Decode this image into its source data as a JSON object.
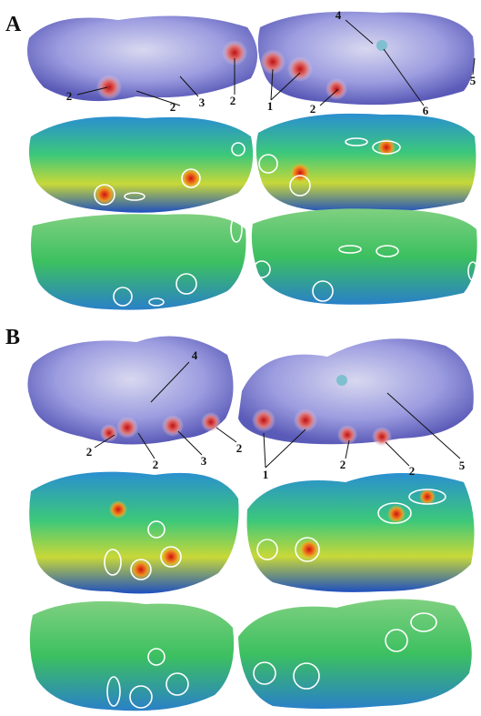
{
  "panels": [
    {
      "label": "A",
      "callouts": [
        "2",
        "2",
        "3",
        "2",
        "4",
        "1",
        "2",
        "6",
        "5"
      ]
    },
    {
      "label": "B",
      "callouts": [
        "4",
        "2",
        "2",
        "3",
        "2",
        "1",
        "2",
        "2",
        "5"
      ]
    }
  ]
}
